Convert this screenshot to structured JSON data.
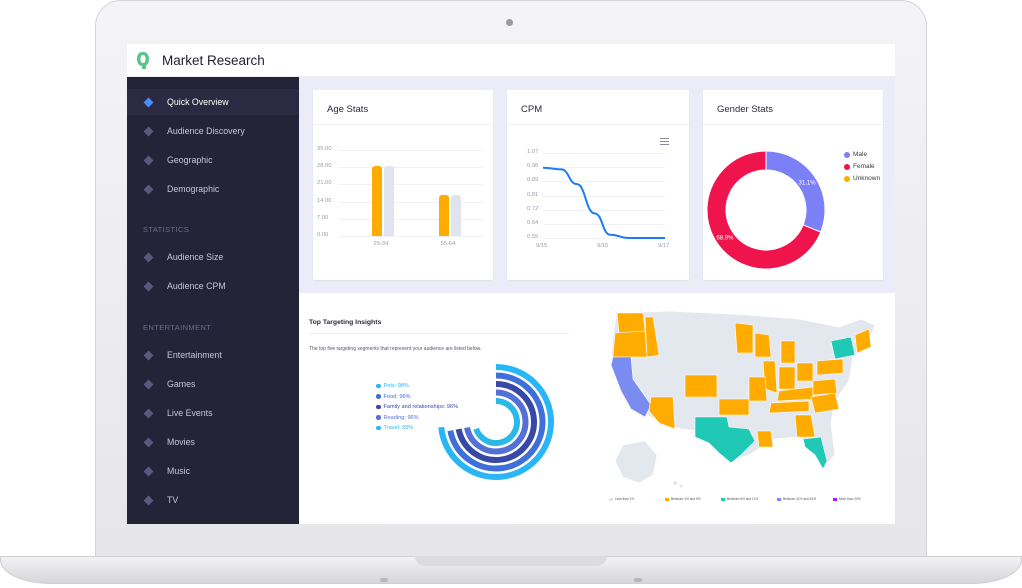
{
  "app": {
    "title": "Market Research"
  },
  "sidebar": {
    "items_top": [
      {
        "label": "Quick Overview",
        "active": true
      },
      {
        "label": "Audience Discovery"
      },
      {
        "label": "Geographic"
      },
      {
        "label": "Demographic"
      }
    ],
    "statistics_heading": "STATISTICS",
    "items_statistics": [
      {
        "label": "Audience Size"
      },
      {
        "label": "Audience CPM"
      }
    ],
    "entertainment_heading": "ENTERTAINMENT",
    "items_entertainment": [
      {
        "label": "Entertainment"
      },
      {
        "label": "Games"
      },
      {
        "label": "Live Events"
      },
      {
        "label": "Movies"
      },
      {
        "label": "Music"
      },
      {
        "label": "TV"
      }
    ]
  },
  "cards": {
    "age_title": "Age Stats",
    "cpm_title": "CPM",
    "gender_title": "Gender Stats"
  },
  "insights": {
    "title": "Top Targeting Insights",
    "description": "The top five targeting segments that represent your audience are listed below.",
    "items": [
      {
        "label": "Pets: 98%",
        "color": "#29b6f6",
        "value": 98
      },
      {
        "label": "Food: 96%",
        "color": "#3f6fd8",
        "value": 96
      },
      {
        "label": "Family and relationships: 96%",
        "color": "#3848a8",
        "value": 96
      },
      {
        "label": "Reading: 96%",
        "color": "#5470d6",
        "value": 96
      },
      {
        "label": "Travel: 93%",
        "color": "#2ab8e8",
        "value": 93
      }
    ]
  },
  "map": {
    "legend": [
      {
        "label": "Less than 1%",
        "color": "#e3e7ee"
      },
      {
        "label": "Between 1% and 5%",
        "color": "#ffab00"
      },
      {
        "label": "Between 5% and 11%",
        "color": "#1fc9b6"
      },
      {
        "label": "Between 11% and 20%",
        "color": "#7b8cf0"
      },
      {
        "label": "More than 20%",
        "color": "#a020f0"
      }
    ]
  },
  "chart_data": [
    {
      "type": "bar",
      "title": "Age Stats",
      "categories": [
        "25-34",
        "55-64"
      ],
      "series": [
        {
          "values": [
            28.5,
            16.8
          ],
          "color": "#ffab00"
        },
        {
          "values": [
            28.5,
            16.8
          ],
          "color": "#dfe4ee"
        }
      ],
      "y_ticks": [
        "0.00",
        "7.00",
        "14.00",
        "21.00",
        "28.00",
        "35.00"
      ],
      "ylim": [
        0,
        35
      ]
    },
    {
      "type": "line",
      "title": "CPM",
      "x": [
        "9/15",
        "9/16",
        "9/17"
      ],
      "points": [
        {
          "x": 0,
          "y": 0.98
        },
        {
          "x": 0.3,
          "y": 0.97
        },
        {
          "x": 0.55,
          "y": 0.88
        },
        {
          "x": 0.85,
          "y": 0.7
        },
        {
          "x": 1.1,
          "y": 0.57
        },
        {
          "x": 1.4,
          "y": 0.55
        },
        {
          "x": 2.0,
          "y": 0.55
        }
      ],
      "y_ticks": [
        "0.55",
        "0.64",
        "0.72",
        "0.81",
        "0.89",
        "0.98",
        "1.07"
      ],
      "ylim": [
        0.55,
        1.07
      ],
      "color": "#1a7ef2"
    },
    {
      "type": "pie",
      "title": "Gender Stats",
      "slices": [
        {
          "label": "Male",
          "value": 31.1,
          "display": "31.1%",
          "color": "#7b80f6"
        },
        {
          "label": "Female",
          "value": 68.9,
          "display": "68.9%",
          "color": "#f0144c"
        },
        {
          "label": "Unknown",
          "value": 0,
          "display": "",
          "color": "#ffab00"
        }
      ]
    }
  ]
}
